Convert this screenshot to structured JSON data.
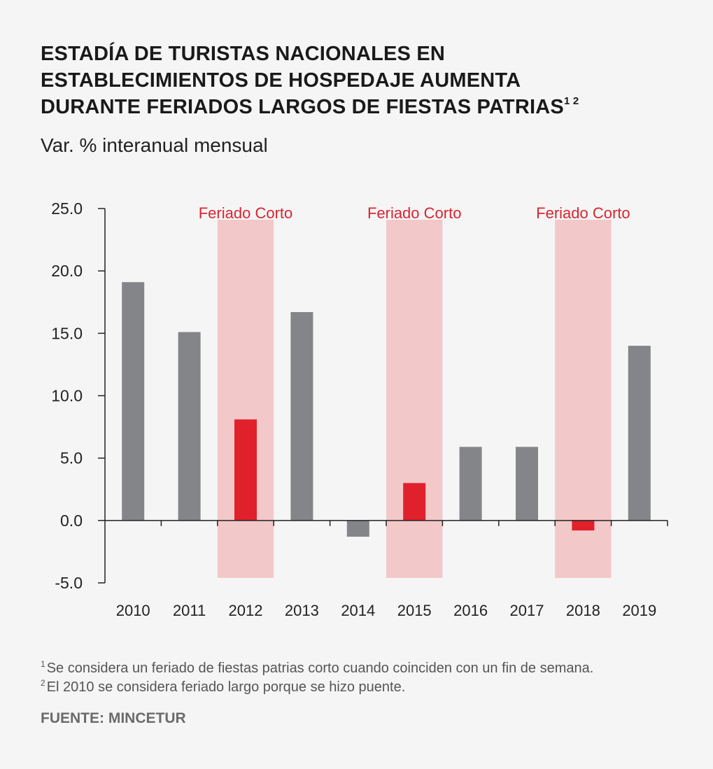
{
  "title": {
    "line1": "ESTADÍA DE TURISTAS NACIONALES EN",
    "line2": "ESTABLECIMIENTOS DE HOSPEDAJE AUMENTA",
    "line3": "DURANTE FERIADOS LARGOS DE FIESTAS PATRIAS",
    "superscript": "1 2"
  },
  "subtitle": "Var. % interanual mensual",
  "notes": [
    {
      "mark": "1",
      "text": "Se considera un feriado de fiestas patrias corto cuando coinciden con un fin de semana."
    },
    {
      "mark": "2",
      "text": "El 2010 se considera feriado largo porque se hizo puente."
    }
  ],
  "source": "FUENTE: MINCETUR",
  "colors": {
    "bar_default": "#848589",
    "bar_highlight": "#e0202b",
    "shade": "#f3c8c9",
    "annotation": "#d9252f",
    "axis": "#222222"
  },
  "chart_data": {
    "type": "bar",
    "categories": [
      "2010",
      "2011",
      "2012",
      "2013",
      "2014",
      "2015",
      "2016",
      "2017",
      "2018",
      "2019"
    ],
    "values": [
      19.1,
      15.1,
      8.1,
      16.7,
      -1.3,
      3.0,
      5.9,
      5.9,
      -0.8,
      14.0
    ],
    "highlighted": [
      "2012",
      "2015",
      "2018"
    ],
    "shaded_categories": [
      "2012",
      "2015",
      "2018"
    ],
    "shade_label": "Feriado Corto",
    "ylim": [
      -5,
      25
    ],
    "yticks": [
      "25.0",
      "20.0",
      "15.0",
      "10.0",
      "5.0",
      "0.0",
      "-5.0"
    ],
    "ytick_values": [
      25,
      20,
      15,
      10,
      5,
      0,
      -5
    ],
    "grid": false,
    "legend": "none",
    "xlabel": "",
    "ylabel": ""
  }
}
